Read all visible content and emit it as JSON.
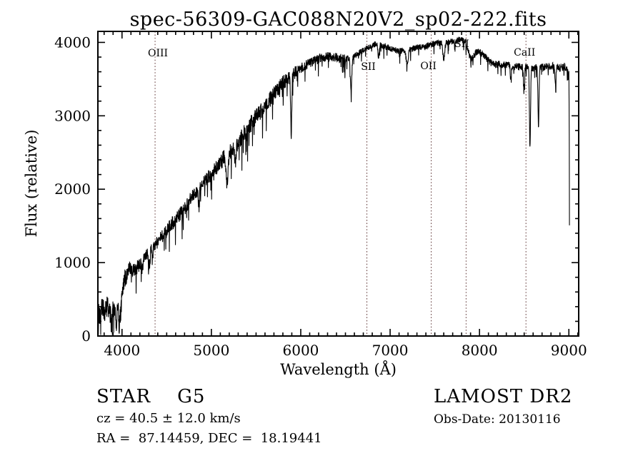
{
  "figure": {
    "title": "spec-56309-GAC088N20V2_sp02-222.fits"
  },
  "axes": {
    "xlabel": "Wavelength (Å)",
    "ylabel": "Flux (relative)"
  },
  "annotations": {
    "object_class": "STAR    G5",
    "cz": "cz = 40.5 ± 12.0 km/s",
    "coords": "RA =  87.14459, DEC =  18.19441",
    "survey": "LAMOST DR2",
    "obs_date": "Obs-Date: 20130116"
  },
  "chart_data": {
    "type": "line",
    "title": "spec-56309-GAC088N20V2_sp02-222.fits",
    "xlabel": "Wavelength (Å)",
    "ylabel": "Flux (relative)",
    "xlim": [
      3730,
      9110
    ],
    "ylim": [
      0,
      4150
    ],
    "x_ticks": [
      4000,
      5000,
      6000,
      7000,
      8000,
      9000
    ],
    "x_minor_step": 100,
    "y_ticks": [
      0,
      1000,
      2000,
      3000,
      4000
    ],
    "y_minor_step": 200,
    "grid": false,
    "legend": "none",
    "line_color": "#000000",
    "spectral_line_color": "#5f3636",
    "spectral_lines": [
      {
        "label": "OIII",
        "wavelength": 4370,
        "label_dx": 4,
        "label_y": 79
      },
      {
        "label": "SII",
        "wavelength": 6740,
        "label_dx": 2,
        "label_y": 98
      },
      {
        "label": "OII",
        "wavelength": 7460,
        "label_dx": -4,
        "label_y": 97
      },
      {
        "label": "SII",
        "wavelength": 7850,
        "label_dx": -6,
        "label_y": 66
      },
      {
        "label": "CaII",
        "wavelength": 8520,
        "label_dx": -2,
        "label_y": 78
      }
    ],
    "spectrum": {
      "description": "Stellar (G5) spectrum: noisy blue end ~300 flux at 3730 Å, steep rise through 4000-5800 Å, broad maximum ~3900-4050 between 6300-7850 Å, step down to ~3700 after 7870 Å, CaII triplet absorption dips near 8500-8700 Å, sharp cutoff drop at 9000 Å",
      "envelope": [
        [
          3730,
          350
        ],
        [
          3755,
          240
        ],
        [
          3780,
          430
        ],
        [
          3805,
          300
        ],
        [
          3830,
          460
        ],
        [
          3860,
          330
        ],
        [
          3885,
          240
        ],
        [
          3910,
          430
        ],
        [
          3935,
          330
        ],
        [
          3960,
          450
        ],
        [
          3985,
          300
        ],
        [
          4005,
          640
        ],
        [
          4030,
          780
        ],
        [
          4060,
          860
        ],
        [
          4090,
          930
        ],
        [
          4120,
          880
        ],
        [
          4150,
          900
        ],
        [
          4180,
          950
        ],
        [
          4220,
          1000
        ],
        [
          4260,
          1070
        ],
        [
          4300,
          1130
        ],
        [
          4350,
          1220
        ],
        [
          4400,
          1290
        ],
        [
          4450,
          1360
        ],
        [
          4500,
          1440
        ],
        [
          4550,
          1520
        ],
        [
          4600,
          1590
        ],
        [
          4650,
          1660
        ],
        [
          4700,
          1740
        ],
        [
          4750,
          1830
        ],
        [
          4800,
          1920
        ],
        [
          4850,
          2000
        ],
        [
          4900,
          2080
        ],
        [
          4950,
          2150
        ],
        [
          5000,
          2210
        ],
        [
          5050,
          2290
        ],
        [
          5100,
          2370
        ],
        [
          5150,
          2440
        ],
        [
          5200,
          2500
        ],
        [
          5250,
          2560
        ],
        [
          5300,
          2640
        ],
        [
          5350,
          2740
        ],
        [
          5400,
          2820
        ],
        [
          5450,
          2900
        ],
        [
          5500,
          2980
        ],
        [
          5550,
          3060
        ],
        [
          5600,
          3140
        ],
        [
          5650,
          3220
        ],
        [
          5700,
          3300
        ],
        [
          5750,
          3380
        ],
        [
          5800,
          3450
        ],
        [
          5850,
          3490
        ],
        [
          5900,
          3530
        ],
        [
          5950,
          3590
        ],
        [
          6000,
          3650
        ],
        [
          6100,
          3720
        ],
        [
          6200,
          3780
        ],
        [
          6300,
          3810
        ],
        [
          6400,
          3790
        ],
        [
          6500,
          3770
        ],
        [
          6600,
          3820
        ],
        [
          6700,
          3900
        ],
        [
          6800,
          3960
        ],
        [
          6850,
          3985
        ],
        [
          6900,
          3970
        ],
        [
          6950,
          3940
        ],
        [
          7000,
          3920
        ],
        [
          7100,
          3880
        ],
        [
          7200,
          3900
        ],
        [
          7300,
          3930
        ],
        [
          7400,
          3950
        ],
        [
          7500,
          3985
        ],
        [
          7600,
          3995
        ],
        [
          7700,
          4010
        ],
        [
          7780,
          4040
        ],
        [
          7840,
          4020
        ],
        [
          7870,
          3890
        ],
        [
          7900,
          3770
        ],
        [
          7930,
          3800
        ],
        [
          7960,
          3860
        ],
        [
          8000,
          3880
        ],
        [
          8040,
          3840
        ],
        [
          8080,
          3780
        ],
        [
          8120,
          3730
        ],
        [
          8160,
          3700
        ],
        [
          8220,
          3700
        ],
        [
          8300,
          3690
        ],
        [
          8400,
          3670
        ],
        [
          8500,
          3660
        ],
        [
          8600,
          3650
        ],
        [
          8700,
          3660
        ],
        [
          8800,
          3680
        ],
        [
          8900,
          3650
        ],
        [
          8960,
          3670
        ],
        [
          9000,
          3560
        ],
        [
          9004,
          3000
        ],
        [
          9008,
          680
        ]
      ],
      "absorption_features": [
        {
          "center": 3934,
          "depth": 250,
          "width": 7
        },
        {
          "center": 3969,
          "depth": 250,
          "width": 7
        },
        {
          "center": 4226,
          "depth": 140,
          "width": 6
        },
        {
          "center": 4305,
          "depth": 180,
          "width": 9
        },
        {
          "center": 4341,
          "depth": 170,
          "width": 6
        },
        {
          "center": 4861,
          "depth": 260,
          "width": 7
        },
        {
          "center": 5175,
          "depth": 420,
          "width": 11
        },
        {
          "center": 5270,
          "depth": 230,
          "width": 8
        },
        {
          "center": 5893,
          "depth": 780,
          "width": 6
        },
        {
          "center": 6563,
          "depth": 470,
          "width": 8
        },
        {
          "center": 6870,
          "depth": 180,
          "width": 8
        },
        {
          "center": 7190,
          "depth": 200,
          "width": 12
        },
        {
          "center": 7600,
          "depth": 220,
          "width": 10
        },
        {
          "center": 8350,
          "depth": 180,
          "width": 5
        },
        {
          "center": 8498,
          "depth": 350,
          "width": 5
        },
        {
          "center": 8565,
          "depth": 1100,
          "width": 6
        },
        {
          "center": 8660,
          "depth": 800,
          "width": 6
        },
        {
          "center": 8850,
          "depth": 280,
          "width": 5
        }
      ],
      "noise_regions": [
        {
          "from": 3730,
          "to": 4050,
          "amp": 130
        },
        {
          "from": 4050,
          "to": 5050,
          "amp": 95
        },
        {
          "from": 5050,
          "to": 5600,
          "amp": 115
        },
        {
          "from": 5600,
          "to": 5950,
          "amp": 100
        },
        {
          "from": 5950,
          "to": 6500,
          "amp": 65
        },
        {
          "from": 6500,
          "to": 7840,
          "amp": 42
        },
        {
          "from": 7840,
          "to": 9010,
          "amp": 50
        }
      ],
      "spike_probability": 0.055,
      "step": 2.2,
      "seed": 42
    }
  }
}
